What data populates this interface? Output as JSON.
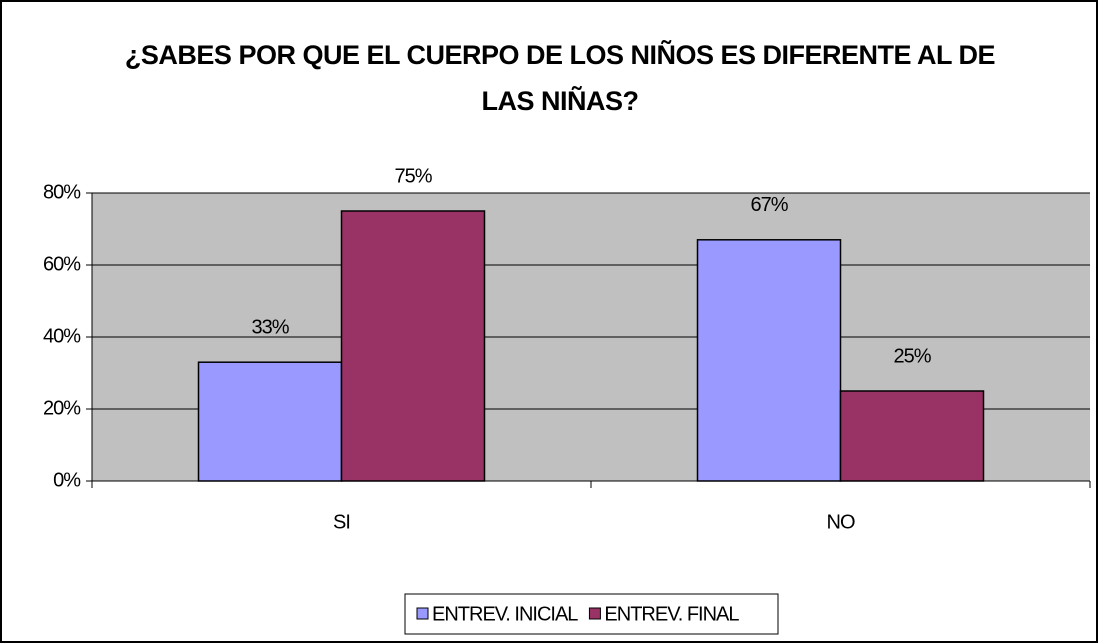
{
  "chart_data": {
    "type": "bar",
    "title": "¿SABES POR QUE EL CUERPO DE LOS NIÑOS ES DIFERENTE AL DE LAS NIÑAS?",
    "categories": [
      "SI",
      "NO"
    ],
    "series": [
      {
        "name": "ENTREV. INICIAL",
        "color": "#9999ff",
        "values": [
          33,
          67
        ],
        "value_labels": [
          "33%",
          "67%"
        ]
      },
      {
        "name": "ENTREV. FINAL",
        "color": "#993366",
        "values": [
          75,
          25
        ],
        "value_labels": [
          "75%",
          "25%"
        ]
      }
    ],
    "ylim": [
      0,
      80
    ],
    "yticks": [
      {
        "value": 0,
        "label": "0%"
      },
      {
        "value": 20,
        "label": "20%"
      },
      {
        "value": 40,
        "label": "40%"
      },
      {
        "value": 60,
        "label": "60%"
      },
      {
        "value": 80,
        "label": "80%"
      }
    ],
    "grid": true,
    "legend": "bottom"
  }
}
